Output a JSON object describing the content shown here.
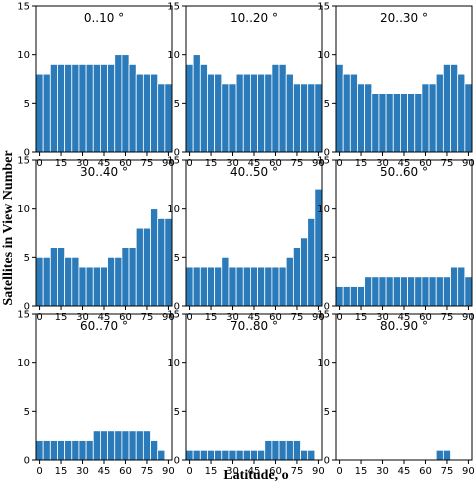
{
  "chart_data": {
    "type": "bar",
    "xlabel": "Latitude, o",
    "ylabel": "Satellites in View Number",
    "ylim": [
      0,
      15
    ],
    "xlim": [
      -2.5,
      92.5
    ],
    "yticks": [
      0,
      5,
      10,
      15
    ],
    "xticks": [
      0,
      15,
      30,
      45,
      60,
      75,
      90
    ],
    "xtick_labels": [
      "0",
      "15",
      "30",
      "45",
      "60",
      "75",
      "90"
    ],
    "categories": [
      0,
      5,
      10,
      15,
      20,
      25,
      30,
      35,
      40,
      45,
      50,
      55,
      60,
      65,
      70,
      75,
      80,
      85,
      90
    ],
    "bar_color": "#2b7bba",
    "panels": [
      {
        "title": "0..10 °",
        "values": [
          8,
          8,
          9,
          9,
          9,
          9,
          9,
          9,
          9,
          9,
          9,
          10,
          10,
          9,
          8,
          8,
          8,
          7,
          7
        ]
      },
      {
        "title": "10..20 °",
        "values": [
          9,
          10,
          9,
          8,
          8,
          7,
          7,
          8,
          8,
          8,
          8,
          8,
          9,
          9,
          8,
          7,
          7,
          7,
          7
        ]
      },
      {
        "title": "20..30 °",
        "values": [
          9,
          8,
          8,
          7,
          7,
          6,
          6,
          6,
          6,
          6,
          6,
          6,
          7,
          7,
          8,
          9,
          9,
          8,
          7
        ]
      },
      {
        "title": "30..40 °",
        "values": [
          5,
          5,
          6,
          6,
          5,
          5,
          4,
          4,
          4,
          4,
          5,
          5,
          6,
          6,
          8,
          8,
          10,
          9,
          9
        ]
      },
      {
        "title": "40..50 °",
        "values": [
          4,
          4,
          4,
          4,
          4,
          5,
          4,
          4,
          4,
          4,
          4,
          4,
          4,
          4,
          5,
          6,
          7,
          9,
          12
        ]
      },
      {
        "title": "50..60 °",
        "values": [
          2,
          2,
          2,
          2,
          3,
          3,
          3,
          3,
          3,
          3,
          3,
          3,
          3,
          3,
          3,
          3,
          4,
          4,
          3
        ]
      },
      {
        "title": "60..70 °",
        "values": [
          2,
          2,
          2,
          2,
          2,
          2,
          2,
          2,
          3,
          3,
          3,
          3,
          3,
          3,
          3,
          3,
          2,
          1,
          0
        ]
      },
      {
        "title": "70..80 °",
        "values": [
          1,
          1,
          1,
          1,
          1,
          1,
          1,
          1,
          1,
          1,
          1,
          2,
          2,
          2,
          2,
          2,
          1,
          1,
          0
        ]
      },
      {
        "title": "80..90 °",
        "values": [
          0,
          0,
          0,
          0,
          0,
          0,
          0,
          0,
          0,
          0,
          0,
          0,
          0,
          0,
          1,
          1,
          0,
          0,
          0
        ]
      }
    ]
  }
}
